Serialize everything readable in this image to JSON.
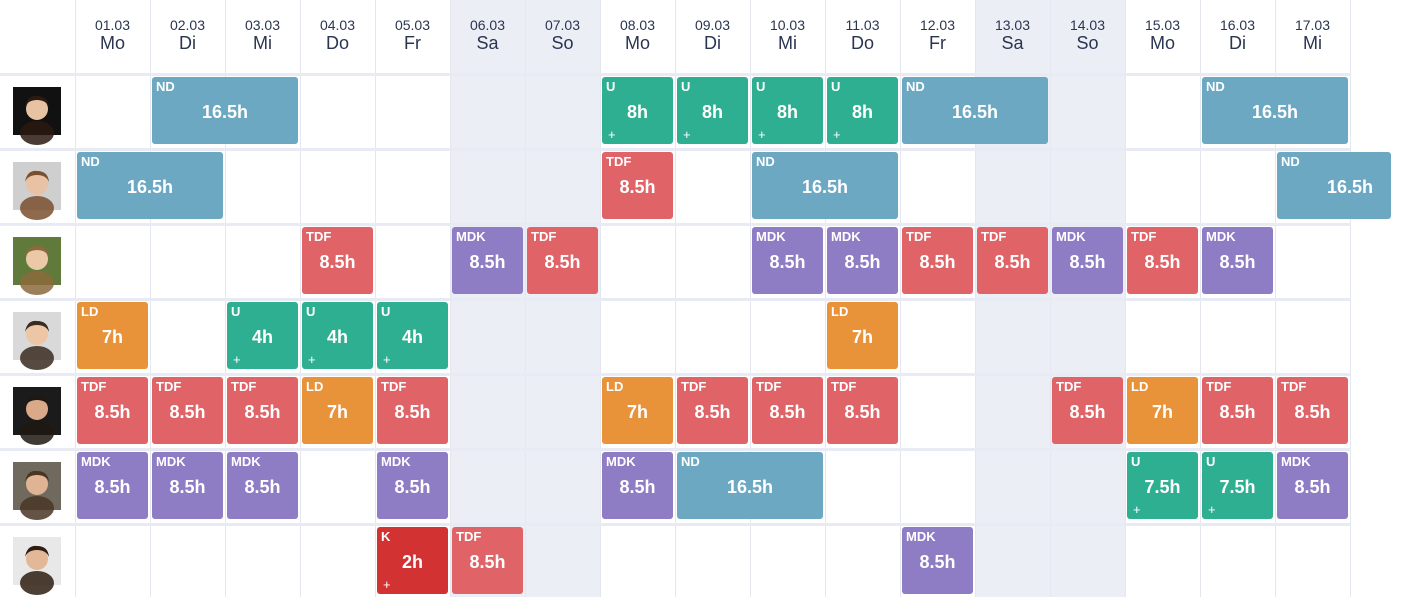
{
  "colors": {
    "ND": "#6ca8c2",
    "U": "#2eaf91",
    "TDF": "#e06467",
    "MDK": "#8e7cc4",
    "LD": "#e8923a",
    "K": "#d23232",
    "weekend": "#eceef6",
    "header_text": "#2a3550"
  },
  "days": [
    {
      "date": "01.03",
      "day": "Mo",
      "weekend": false
    },
    {
      "date": "02.03",
      "day": "Di",
      "weekend": false
    },
    {
      "date": "03.03",
      "day": "Mi",
      "weekend": false
    },
    {
      "date": "04.03",
      "day": "Do",
      "weekend": false
    },
    {
      "date": "05.03",
      "day": "Fr",
      "weekend": false
    },
    {
      "date": "06.03",
      "day": "Sa",
      "weekend": true
    },
    {
      "date": "07.03",
      "day": "So",
      "weekend": true
    },
    {
      "date": "08.03",
      "day": "Mo",
      "weekend": false
    },
    {
      "date": "09.03",
      "day": "Di",
      "weekend": false
    },
    {
      "date": "10.03",
      "day": "Mi",
      "weekend": false
    },
    {
      "date": "11.03",
      "day": "Do",
      "weekend": false
    },
    {
      "date": "12.03",
      "day": "Fr",
      "weekend": false
    },
    {
      "date": "13.03",
      "day": "Sa",
      "weekend": true
    },
    {
      "date": "14.03",
      "day": "So",
      "weekend": true
    },
    {
      "date": "15.03",
      "day": "Mo",
      "weekend": false
    },
    {
      "date": "16.03",
      "day": "Di",
      "weekend": false
    },
    {
      "date": "17.03",
      "day": "Mi",
      "weekend": false
    }
  ],
  "employees": [
    {
      "avatar": "avatar-1",
      "skin": "#e7c3a4",
      "hair": "#2a1a10",
      "bg": "#111111"
    },
    {
      "avatar": "avatar-2",
      "skin": "#e9c2a6",
      "hair": "#7a4f2e",
      "bg": "#cfcfcf"
    },
    {
      "avatar": "avatar-3",
      "skin": "#ebc8a8",
      "hair": "#8b6a3c",
      "bg": "#5f7a3a"
    },
    {
      "avatar": "avatar-4",
      "skin": "#edc6a6",
      "hair": "#3a2a1f",
      "bg": "#d9d9d9"
    },
    {
      "avatar": "avatar-5",
      "skin": "#d9a98a",
      "hair": "#1f1712",
      "bg": "#1b1b1b"
    },
    {
      "avatar": "avatar-6",
      "skin": "#dfb494",
      "hair": "#4a3524",
      "bg": "#6f6a5d"
    },
    {
      "avatar": "avatar-7",
      "skin": "#e3b898",
      "hair": "#2f1d12",
      "bg": "#e8e8e8"
    }
  ],
  "shifts": [
    [
      {
        "start": 1,
        "span": 2,
        "code": "ND",
        "hours": "16.5h",
        "plus": false
      },
      {
        "start": 7,
        "span": 1,
        "code": "U",
        "hours": "8h",
        "plus": true
      },
      {
        "start": 8,
        "span": 1,
        "code": "U",
        "hours": "8h",
        "plus": true
      },
      {
        "start": 9,
        "span": 1,
        "code": "U",
        "hours": "8h",
        "plus": true
      },
      {
        "start": 10,
        "span": 1,
        "code": "U",
        "hours": "8h",
        "plus": true
      },
      {
        "start": 11,
        "span": 2,
        "code": "ND",
        "hours": "16.5h",
        "plus": false
      },
      {
        "start": 15,
        "span": 2,
        "code": "ND",
        "hours": "16.5h",
        "plus": false
      }
    ],
    [
      {
        "start": 0,
        "span": 2,
        "code": "ND",
        "hours": "16.5h",
        "plus": false
      },
      {
        "start": 7,
        "span": 1,
        "code": "TDF",
        "hours": "8.5h",
        "plus": false
      },
      {
        "start": 9,
        "span": 2,
        "code": "ND",
        "hours": "16.5h",
        "plus": false
      },
      {
        "start": 16,
        "span": 2,
        "code": "ND",
        "hours": "16.5h",
        "plus": false
      }
    ],
    [
      {
        "start": 3,
        "span": 1,
        "code": "TDF",
        "hours": "8.5h",
        "plus": false
      },
      {
        "start": 5,
        "span": 1,
        "code": "MDK",
        "hours": "8.5h",
        "plus": false
      },
      {
        "start": 6,
        "span": 1,
        "code": "TDF",
        "hours": "8.5h",
        "plus": false
      },
      {
        "start": 9,
        "span": 1,
        "code": "MDK",
        "hours": "8.5h",
        "plus": false
      },
      {
        "start": 10,
        "span": 1,
        "code": "MDK",
        "hours": "8.5h",
        "plus": false
      },
      {
        "start": 11,
        "span": 1,
        "code": "TDF",
        "hours": "8.5h",
        "plus": false
      },
      {
        "start": 12,
        "span": 1,
        "code": "TDF",
        "hours": "8.5h",
        "plus": false
      },
      {
        "start": 13,
        "span": 1,
        "code": "MDK",
        "hours": "8.5h",
        "plus": false
      },
      {
        "start": 14,
        "span": 1,
        "code": "TDF",
        "hours": "8.5h",
        "plus": false
      },
      {
        "start": 15,
        "span": 1,
        "code": "MDK",
        "hours": "8.5h",
        "plus": false
      }
    ],
    [
      {
        "start": 0,
        "span": 1,
        "code": "LD",
        "hours": "7h",
        "plus": false
      },
      {
        "start": 2,
        "span": 1,
        "code": "U",
        "hours": "4h",
        "plus": true
      },
      {
        "start": 3,
        "span": 1,
        "code": "U",
        "hours": "4h",
        "plus": true
      },
      {
        "start": 4,
        "span": 1,
        "code": "U",
        "hours": "4h",
        "plus": true
      },
      {
        "start": 10,
        "span": 1,
        "code": "LD",
        "hours": "7h",
        "plus": false
      }
    ],
    [
      {
        "start": 0,
        "span": 1,
        "code": "TDF",
        "hours": "8.5h",
        "plus": false
      },
      {
        "start": 1,
        "span": 1,
        "code": "TDF",
        "hours": "8.5h",
        "plus": false
      },
      {
        "start": 2,
        "span": 1,
        "code": "TDF",
        "hours": "8.5h",
        "plus": false
      },
      {
        "start": 3,
        "span": 1,
        "code": "LD",
        "hours": "7h",
        "plus": false
      },
      {
        "start": 4,
        "span": 1,
        "code": "TDF",
        "hours": "8.5h",
        "plus": false
      },
      {
        "start": 7,
        "span": 1,
        "code": "LD",
        "hours": "7h",
        "plus": false
      },
      {
        "start": 8,
        "span": 1,
        "code": "TDF",
        "hours": "8.5h",
        "plus": false
      },
      {
        "start": 9,
        "span": 1,
        "code": "TDF",
        "hours": "8.5h",
        "plus": false
      },
      {
        "start": 10,
        "span": 1,
        "code": "TDF",
        "hours": "8.5h",
        "plus": false
      },
      {
        "start": 13,
        "span": 1,
        "code": "TDF",
        "hours": "8.5h",
        "plus": false
      },
      {
        "start": 14,
        "span": 1,
        "code": "LD",
        "hours": "7h",
        "plus": false
      },
      {
        "start": 15,
        "span": 1,
        "code": "TDF",
        "hours": "8.5h",
        "plus": false
      },
      {
        "start": 16,
        "span": 1,
        "code": "TDF",
        "hours": "8.5h",
        "plus": false
      }
    ],
    [
      {
        "start": 0,
        "span": 1,
        "code": "MDK",
        "hours": "8.5h",
        "plus": false
      },
      {
        "start": 1,
        "span": 1,
        "code": "MDK",
        "hours": "8.5h",
        "plus": false
      },
      {
        "start": 2,
        "span": 1,
        "code": "MDK",
        "hours": "8.5h",
        "plus": false
      },
      {
        "start": 4,
        "span": 1,
        "code": "MDK",
        "hours": "8.5h",
        "plus": false
      },
      {
        "start": 7,
        "span": 1,
        "code": "MDK",
        "hours": "8.5h",
        "plus": false
      },
      {
        "start": 8,
        "span": 2,
        "code": "ND",
        "hours": "16.5h",
        "plus": false
      },
      {
        "start": 14,
        "span": 1,
        "code": "U",
        "hours": "7.5h",
        "plus": true
      },
      {
        "start": 15,
        "span": 1,
        "code": "U",
        "hours": "7.5h",
        "plus": true
      },
      {
        "start": 16,
        "span": 1,
        "code": "MDK",
        "hours": "8.5h",
        "plus": false
      }
    ],
    [
      {
        "start": 4,
        "span": 1,
        "code": "K",
        "hours": "2h",
        "plus": true
      },
      {
        "start": 5,
        "span": 1,
        "code": "TDF",
        "hours": "8.5h",
        "plus": false
      },
      {
        "start": 11,
        "span": 1,
        "code": "MDK",
        "hours": "8.5h",
        "plus": false
      }
    ]
  ],
  "plus_symbol": "+"
}
